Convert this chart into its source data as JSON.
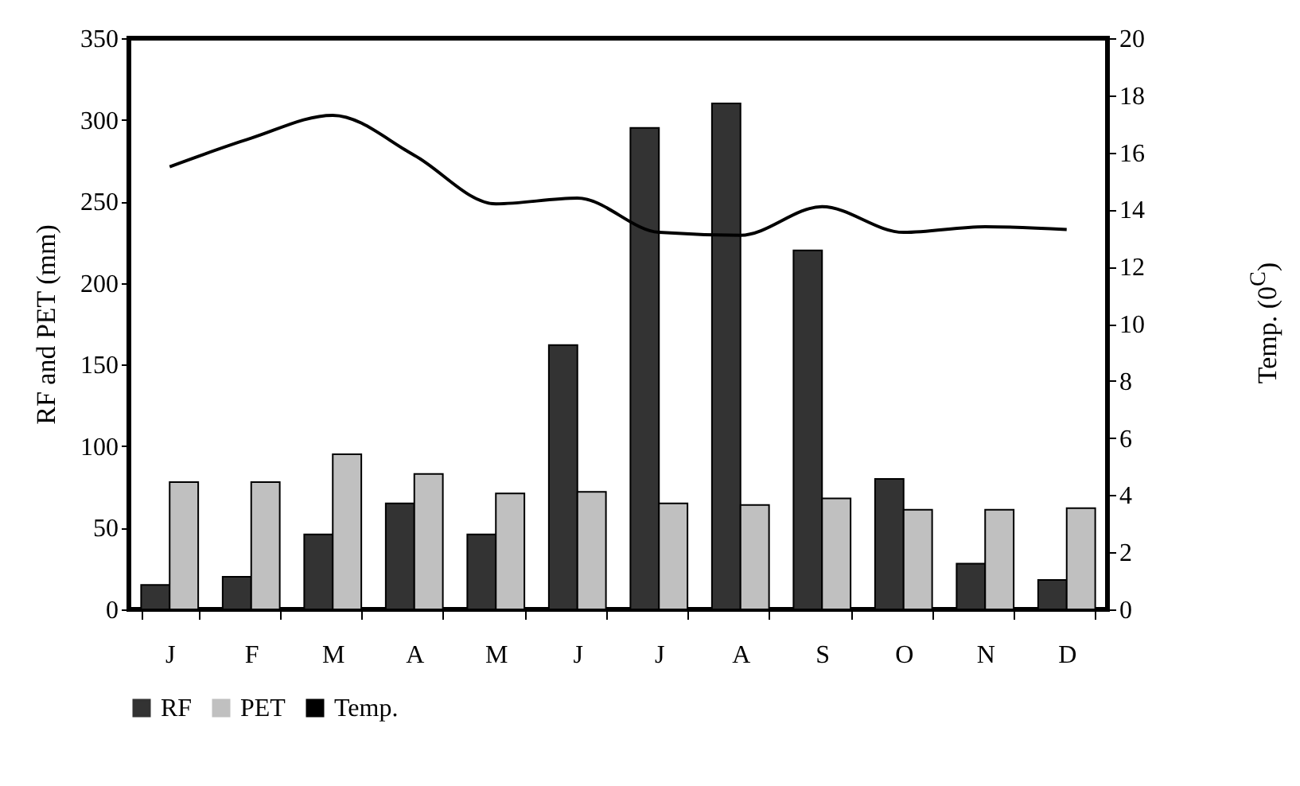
{
  "chart_data": {
    "type": "bar",
    "categories": [
      "J",
      "F",
      "M",
      "A",
      "M",
      "J",
      "J",
      "A",
      "S",
      "O",
      "N",
      "D"
    ],
    "series": [
      {
        "name": "RF",
        "color": "#333333",
        "values": [
          15,
          20,
          46,
          65,
          46,
          162,
          295,
          310,
          220,
          80,
          28,
          18
        ]
      },
      {
        "name": "PET",
        "color": "#c0c0c0",
        "values": [
          78,
          78,
          95,
          83,
          71,
          72,
          65,
          64,
          68,
          61,
          61,
          62
        ]
      },
      {
        "name": "Temp.",
        "type": "line",
        "axis": "y2",
        "color": "#000000",
        "values": [
          15.5,
          16.5,
          17.3,
          15.9,
          14.2,
          14.4,
          13.2,
          13.1,
          14.1,
          13.2,
          13.4,
          13.3
        ]
      }
    ],
    "ylabel": "RF and PET (mm)",
    "y2label": "Temp. (0$^{C}$)",
    "ylim": [
      0,
      350
    ],
    "yticks": [
      0,
      50,
      100,
      150,
      200,
      250,
      300,
      350
    ],
    "y2lim": [
      0,
      20
    ],
    "y2ticks": [
      0,
      2,
      4,
      6,
      8,
      10,
      12,
      14,
      16,
      18,
      20
    ],
    "legend": "bottom",
    "grid": false
  }
}
